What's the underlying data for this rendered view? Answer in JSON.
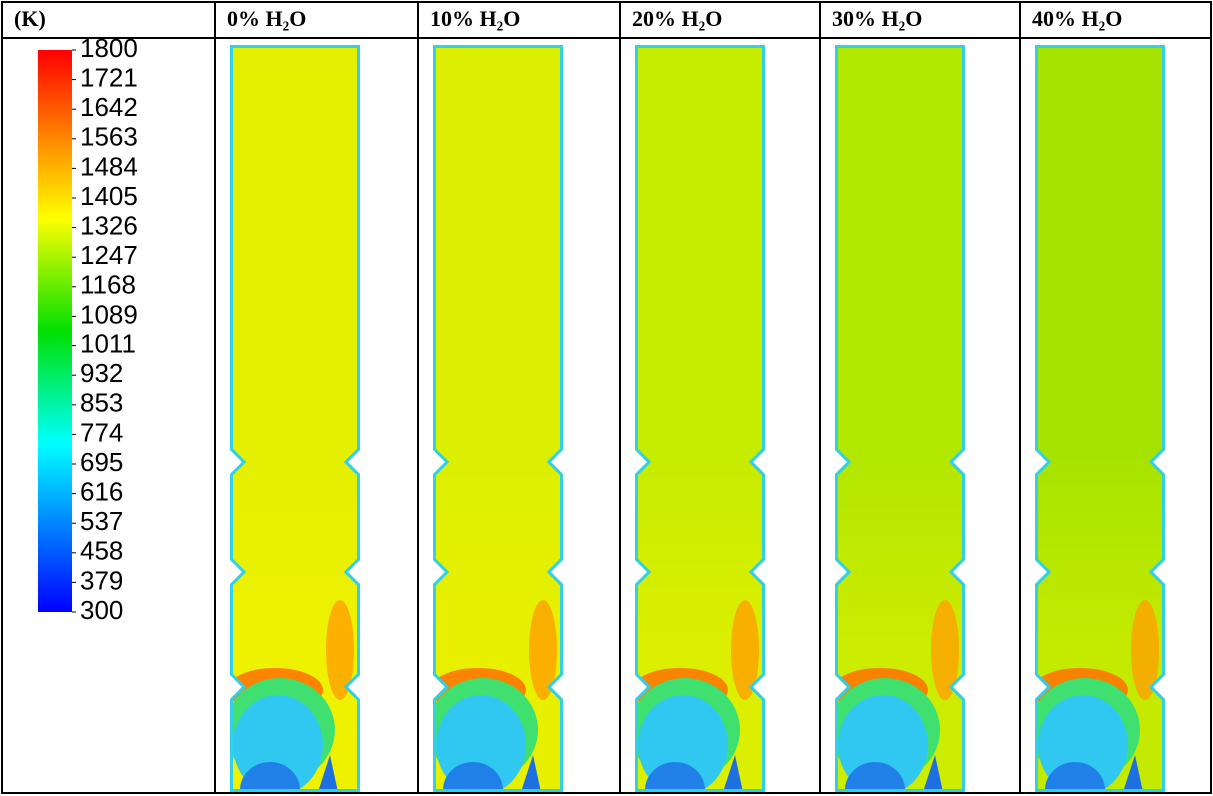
{
  "header": {
    "cells": [
      "(K)",
      "0% H₂O",
      "10% H₂O",
      "20% H₂O",
      "30% H₂O",
      "40% H₂O"
    ]
  },
  "colorbar": {
    "range": [
      300,
      1800
    ],
    "ticks": [
      1800,
      1721,
      1642,
      1563,
      1484,
      1405,
      1326,
      1247,
      1168,
      1089,
      1011,
      932,
      853,
      774,
      695,
      616,
      537,
      458,
      379,
      300
    ]
  }
}
